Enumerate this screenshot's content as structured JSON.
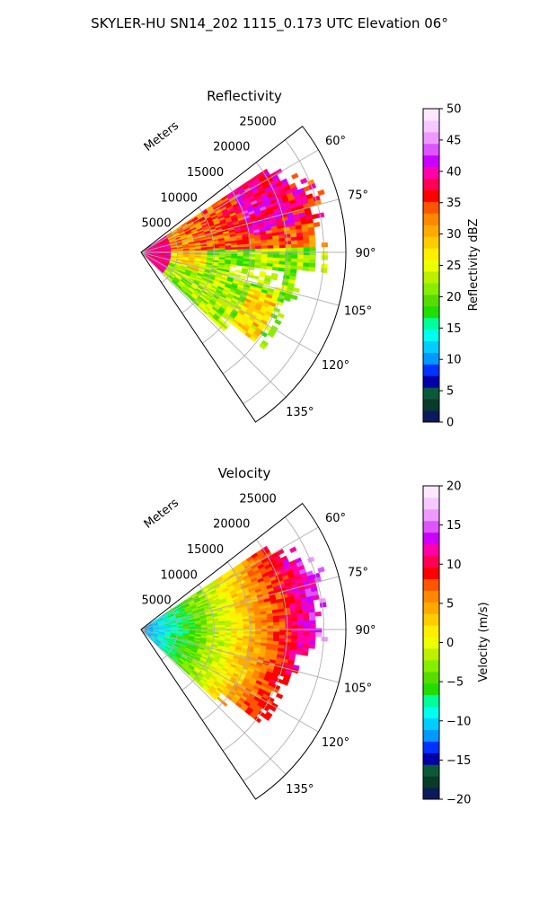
{
  "figure_title": "SKYLER-HU  SN14_202  1115_0.173 UTC Elevation 06°",
  "chart_data": [
    {
      "type": "polar-sector",
      "title": "Reflectivity",
      "radial_label": "Meters",
      "radial_ticks": [
        "5000",
        "10000",
        "15000",
        "20000",
        "25000"
      ],
      "radial_tick_values": [
        5000,
        10000,
        15000,
        20000,
        25000
      ],
      "radial_max": 28000,
      "angle_ticks": [
        "60°",
        "75°",
        "90°",
        "105°",
        "120°",
        "135°"
      ],
      "angle_tick_values": [
        60,
        75,
        90,
        105,
        120,
        135
      ],
      "angle_range": [
        52,
        146
      ],
      "grid": true,
      "colorbar": {
        "label": "Reflectivity dBZ",
        "min": 0,
        "max": 50,
        "ticks": [
          "0",
          "5",
          "10",
          "15",
          "20",
          "25",
          "30",
          "35",
          "40",
          "45",
          "50"
        ],
        "tick_values": [
          0,
          5,
          10,
          15,
          20,
          25,
          30,
          35,
          40,
          45,
          50
        ],
        "colors": [
          "#0a1a5a",
          "#0a3a2a",
          "#0a5a3a",
          "#0000aa",
          "#0033ff",
          "#0099ff",
          "#00ccff",
          "#00ffee",
          "#00ff99",
          "#22dd00",
          "#55dd00",
          "#88ee00",
          "#bbf000",
          "#eeff00",
          "#ffee00",
          "#ffcc00",
          "#ffaa00",
          "#ff8800",
          "#ff5500",
          "#ff0000",
          "#ff0055",
          "#ff00aa",
          "#cc00ff",
          "#dd55ff",
          "#ee99ff",
          "#f5c8ff",
          "#fde8ff"
        ]
      }
    },
    {
      "type": "polar-sector",
      "title": "Velocity",
      "radial_label": "Meters",
      "radial_ticks": [
        "5000",
        "10000",
        "15000",
        "20000",
        "25000"
      ],
      "radial_tick_values": [
        5000,
        10000,
        15000,
        20000,
        25000
      ],
      "radial_max": 28000,
      "angle_ticks": [
        "60°",
        "75°",
        "90°",
        "105°",
        "120°",
        "135°"
      ],
      "angle_tick_values": [
        60,
        75,
        90,
        105,
        120,
        135
      ],
      "angle_range": [
        52,
        146
      ],
      "grid": true,
      "colorbar": {
        "label": "Velocity (m/s)",
        "min": -20,
        "max": 20,
        "ticks": [
          "−20",
          "−15",
          "−10",
          "−5",
          "0",
          "5",
          "10",
          "15",
          "20"
        ],
        "tick_values": [
          -20,
          -15,
          -10,
          -5,
          0,
          5,
          10,
          15,
          20
        ],
        "colors": [
          "#0a1a5a",
          "#0a3a2a",
          "#0a5a3a",
          "#0000aa",
          "#0033ff",
          "#0099ff",
          "#00ccff",
          "#00ffee",
          "#00ff99",
          "#22dd00",
          "#55dd00",
          "#88ee00",
          "#bbf000",
          "#eeff00",
          "#ffee00",
          "#ffcc00",
          "#ffaa00",
          "#ff8800",
          "#ff5500",
          "#ff0000",
          "#ff0055",
          "#ff00aa",
          "#cc00ff",
          "#dd55ff",
          "#ee99ff",
          "#f5c8ff",
          "#fde8ff"
        ]
      }
    }
  ]
}
